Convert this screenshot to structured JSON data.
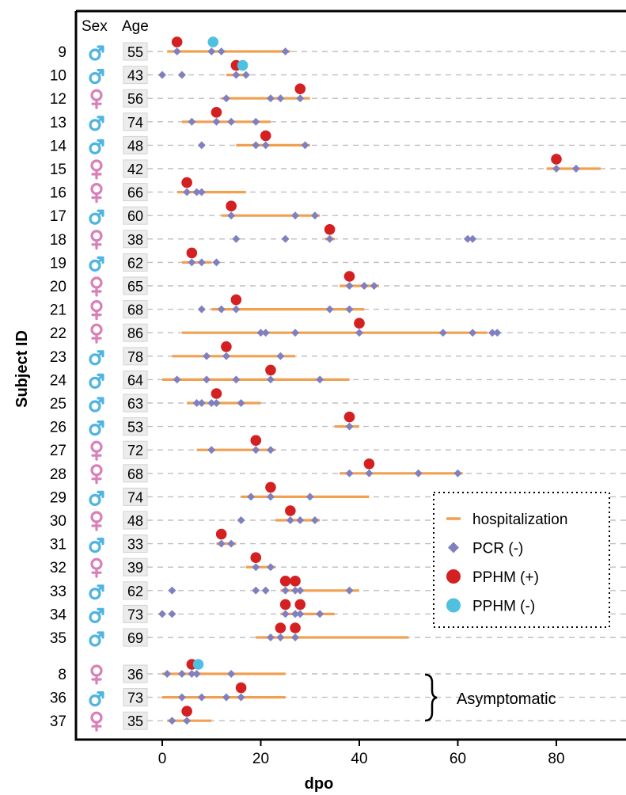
{
  "chart_data": {
    "type": "scatter",
    "xlabel": "dpo",
    "ylabel": "Subject ID",
    "xlim": [
      -17,
      94
    ],
    "x_ticks": [
      0,
      20,
      40,
      60,
      80
    ],
    "grid": "horizontal dashed",
    "legend_position": "right",
    "column_headers": {
      "sex": "Sex",
      "age": "Age"
    },
    "annotation": "Asymptomatic",
    "colors": {
      "hospitalization": "#f0a050",
      "pcr_negative": "#8080c0",
      "pphm_positive": "#d42020",
      "pphm_negative": "#50c0e0",
      "male": "#4fb5e0",
      "female": "#d880b8",
      "grid": "#bfbfbf"
    },
    "legend": [
      {
        "key": "hospitalization",
        "label": "hospitalization",
        "shape": "line"
      },
      {
        "key": "pcr_negative",
        "label": "PCR (-)",
        "shape": "diamond"
      },
      {
        "key": "pphm_positive",
        "label": "PPHM (+)",
        "shape": "circle"
      },
      {
        "key": "pphm_negative",
        "label": "PPHM (-)",
        "shape": "circle"
      }
    ],
    "subjects": [
      {
        "id": "9",
        "sex": "M",
        "age": "55",
        "group": "symptomatic",
        "hosp": [
          1,
          26
        ],
        "pcr_negative": [
          3,
          10,
          12,
          25
        ],
        "pphm_positive": [
          3
        ],
        "pphm_negative": [
          10
        ]
      },
      {
        "id": "10",
        "sex": "M",
        "age": "43",
        "group": "symptomatic",
        "hosp": [
          13,
          17
        ],
        "pcr_negative": [
          0,
          4,
          15,
          17
        ],
        "pphm_positive": [
          15
        ],
        "pphm_negative": [
          16
        ]
      },
      {
        "id": "12",
        "sex": "F",
        "age": "56",
        "group": "symptomatic",
        "hosp": [
          12,
          30
        ],
        "pcr_negative": [
          13,
          22,
          24,
          28
        ],
        "pphm_positive": [
          28
        ],
        "pphm_negative": []
      },
      {
        "id": "13",
        "sex": "M",
        "age": "74",
        "group": "symptomatic",
        "hosp": [
          4,
          22
        ],
        "pcr_negative": [
          6,
          11,
          14,
          19
        ],
        "pphm_positive": [
          11
        ],
        "pphm_negative": []
      },
      {
        "id": "14",
        "sex": "M",
        "age": "48",
        "group": "symptomatic",
        "hosp": [
          15,
          30
        ],
        "pcr_negative": [
          8,
          19,
          21,
          29
        ],
        "pphm_positive": [
          21
        ],
        "pphm_negative": []
      },
      {
        "id": "15",
        "sex": "F",
        "age": "42",
        "group": "symptomatic",
        "hosp": [
          78,
          89
        ],
        "pcr_negative": [
          80,
          84
        ],
        "pphm_positive": [
          80
        ],
        "pphm_negative": []
      },
      {
        "id": "16",
        "sex": "F",
        "age": "66",
        "group": "symptomatic",
        "hosp": [
          3,
          17
        ],
        "pcr_negative": [
          5,
          7,
          8
        ],
        "pphm_positive": [
          5
        ],
        "pphm_negative": []
      },
      {
        "id": "17",
        "sex": "M",
        "age": "60",
        "group": "symptomatic",
        "hosp": [
          12,
          32
        ],
        "pcr_negative": [
          14,
          27,
          31
        ],
        "pphm_positive": [
          14
        ],
        "pphm_negative": []
      },
      {
        "id": "18",
        "sex": "F",
        "age": "38",
        "group": "symptomatic",
        "hosp": [
          33,
          35
        ],
        "pcr_negative": [
          15,
          25,
          34,
          62,
          63
        ],
        "pphm_positive": [
          34
        ],
        "pphm_negative": []
      },
      {
        "id": "19",
        "sex": "M",
        "age": "62",
        "group": "symptomatic",
        "hosp": [
          4,
          10
        ],
        "pcr_negative": [
          6,
          8,
          11
        ],
        "pphm_positive": [
          6
        ],
        "pphm_negative": []
      },
      {
        "id": "20",
        "sex": "F",
        "age": "65",
        "group": "symptomatic",
        "hosp": [
          36,
          44
        ],
        "pcr_negative": [
          38,
          41,
          43
        ],
        "pphm_positive": [
          38
        ],
        "pphm_negative": []
      },
      {
        "id": "21",
        "sex": "F",
        "age": "68",
        "group": "symptomatic",
        "hosp": [
          10,
          41
        ],
        "pcr_negative": [
          8,
          12,
          15,
          34,
          38
        ],
        "pphm_positive": [
          15
        ],
        "pphm_negative": []
      },
      {
        "id": "22",
        "sex": "F",
        "age": "86",
        "group": "symptomatic",
        "hosp": [
          4,
          66
        ],
        "pcr_negative": [
          20,
          21,
          27,
          40,
          57,
          63,
          67,
          68
        ],
        "pphm_positive": [
          40
        ],
        "pphm_negative": []
      },
      {
        "id": "23",
        "sex": "M",
        "age": "78",
        "group": "symptomatic",
        "hosp": [
          2,
          27
        ],
        "pcr_negative": [
          9,
          13,
          24
        ],
        "pphm_positive": [
          13
        ],
        "pphm_negative": []
      },
      {
        "id": "24",
        "sex": "M",
        "age": "64",
        "group": "symptomatic",
        "hosp": [
          0,
          38
        ],
        "pcr_negative": [
          3,
          9,
          15,
          22,
          32
        ],
        "pphm_positive": [
          22
        ],
        "pphm_negative": []
      },
      {
        "id": "25",
        "sex": "M",
        "age": "63",
        "group": "symptomatic",
        "hosp": [
          5,
          20
        ],
        "pcr_negative": [
          7,
          8,
          10,
          11,
          16
        ],
        "pphm_positive": [
          11
        ],
        "pphm_negative": []
      },
      {
        "id": "26",
        "sex": "M",
        "age": "53",
        "group": "symptomatic",
        "hosp": [
          35,
          40
        ],
        "pcr_negative": [
          38
        ],
        "pphm_positive": [
          38
        ],
        "pphm_negative": []
      },
      {
        "id": "27",
        "sex": "F",
        "age": "72",
        "group": "symptomatic",
        "hosp": [
          7,
          23
        ],
        "pcr_negative": [
          10,
          19,
          22
        ],
        "pphm_positive": [
          19
        ],
        "pphm_negative": []
      },
      {
        "id": "28",
        "sex": "F",
        "age": "68",
        "group": "symptomatic",
        "hosp": [
          36,
          61
        ],
        "pcr_negative": [
          38,
          42,
          52,
          60
        ],
        "pphm_positive": [
          42
        ],
        "pphm_negative": []
      },
      {
        "id": "29",
        "sex": "M",
        "age": "74",
        "group": "symptomatic",
        "hosp": [
          16,
          42
        ],
        "pcr_negative": [
          18,
          22,
          30
        ],
        "pphm_positive": [
          22
        ],
        "pphm_negative": []
      },
      {
        "id": "30",
        "sex": "F",
        "age": "48",
        "group": "symptomatic",
        "hosp": [
          23,
          32
        ],
        "pcr_negative": [
          16,
          26,
          28,
          31
        ],
        "pphm_positive": [
          26
        ],
        "pphm_negative": []
      },
      {
        "id": "31",
        "sex": "M",
        "age": "33",
        "group": "symptomatic",
        "hosp": [
          11,
          15
        ],
        "pcr_negative": [
          12,
          14
        ],
        "pphm_positive": [
          12
        ],
        "pphm_negative": []
      },
      {
        "id": "32",
        "sex": "F",
        "age": "39",
        "group": "symptomatic",
        "hosp": [
          17,
          23
        ],
        "pcr_negative": [
          19,
          22
        ],
        "pphm_positive": [
          19
        ],
        "pphm_negative": []
      },
      {
        "id": "33",
        "sex": "M",
        "age": "62",
        "group": "symptomatic",
        "hosp": [
          24,
          40
        ],
        "pcr_negative": [
          2,
          19,
          21,
          25,
          27,
          28,
          38
        ],
        "pphm_positive": [
          25,
          27
        ],
        "pphm_negative": []
      },
      {
        "id": "34",
        "sex": "M",
        "age": "73",
        "group": "symptomatic",
        "hosp": [
          24,
          35
        ],
        "pcr_negative": [
          0,
          2,
          25,
          27,
          28,
          32
        ],
        "pphm_positive": [
          25,
          28
        ],
        "pphm_negative": []
      },
      {
        "id": "35",
        "sex": "M",
        "age": "69",
        "group": "symptomatic",
        "hosp": [
          19,
          50
        ],
        "pcr_negative": [
          22,
          24,
          27
        ],
        "pphm_positive": [
          24,
          27
        ],
        "pphm_negative": []
      },
      {
        "id": "8",
        "sex": "F",
        "age": "36",
        "group": "asymptomatic",
        "hosp": [
          0,
          25
        ],
        "pcr_negative": [
          1,
          4,
          6,
          7,
          14
        ],
        "pphm_positive": [
          6
        ],
        "pphm_negative": [
          7
        ]
      },
      {
        "id": "36",
        "sex": "M",
        "age": "73",
        "group": "asymptomatic",
        "hosp": [
          0,
          25
        ],
        "pcr_negative": [
          4,
          8,
          13,
          16
        ],
        "pphm_positive": [
          16
        ],
        "pphm_negative": []
      },
      {
        "id": "37",
        "sex": "F",
        "age": "35",
        "group": "asymptomatic",
        "hosp": [
          1,
          10
        ],
        "pcr_negative": [
          2,
          5
        ],
        "pphm_positive": [
          5
        ],
        "pphm_negative": []
      }
    ]
  }
}
